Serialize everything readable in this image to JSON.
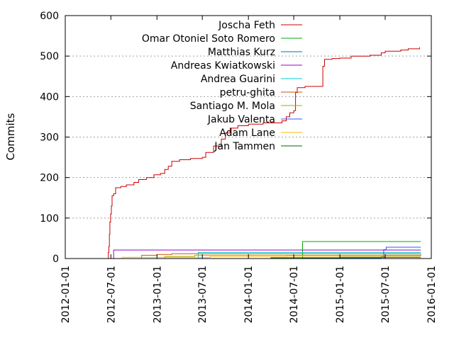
{
  "chart_data": {
    "type": "line",
    "ylabel": "Commits",
    "xlabel": "",
    "title": "",
    "ylim": [
      0,
      600
    ],
    "yticks": [
      0,
      100,
      200,
      300,
      400,
      500,
      600
    ],
    "xlim": [
      "2012-01-01",
      "2016-01-01"
    ],
    "xticks": [
      "2012-01-01",
      "2012-07-01",
      "2013-01-01",
      "2013-07-01",
      "2014-01-01",
      "2014-07-01",
      "2015-01-01",
      "2015-07-01",
      "2016-01-01"
    ],
    "grid": "horizontal-dashed",
    "legend_position": "top-right",
    "series": [
      {
        "name": "Joscha Feth",
        "color": "#cc0000",
        "points": [
          [
            "2012-06-20",
            0
          ],
          [
            "2012-06-21",
            15
          ],
          [
            "2012-06-23",
            30
          ],
          [
            "2012-06-25",
            60
          ],
          [
            "2012-06-27",
            90
          ],
          [
            "2012-06-30",
            110
          ],
          [
            "2012-07-03",
            130
          ],
          [
            "2012-07-06",
            155
          ],
          [
            "2012-07-12",
            160
          ],
          [
            "2012-07-20",
            175
          ],
          [
            "2012-08-10",
            178
          ],
          [
            "2012-09-01",
            182
          ],
          [
            "2012-10-01",
            188
          ],
          [
            "2012-10-20",
            195
          ],
          [
            "2012-11-20",
            200
          ],
          [
            "2012-12-20",
            207
          ],
          [
            "2013-01-15",
            210
          ],
          [
            "2013-02-01",
            220
          ],
          [
            "2013-02-15",
            228
          ],
          [
            "2013-03-01",
            240
          ],
          [
            "2013-04-01",
            244
          ],
          [
            "2013-05-15",
            247
          ],
          [
            "2013-07-01",
            250
          ],
          [
            "2013-07-15",
            262
          ],
          [
            "2013-08-15",
            278
          ],
          [
            "2013-09-15",
            295
          ],
          [
            "2013-10-01",
            310
          ],
          [
            "2013-10-20",
            322
          ],
          [
            "2013-11-20",
            328
          ],
          [
            "2014-01-01",
            332
          ],
          [
            "2014-03-01",
            335
          ],
          [
            "2014-05-15",
            340
          ],
          [
            "2014-06-01",
            350
          ],
          [
            "2014-06-15",
            360
          ],
          [
            "2014-07-01",
            365
          ],
          [
            "2014-07-08",
            410
          ],
          [
            "2014-07-15",
            422
          ],
          [
            "2014-08-15",
            425
          ],
          [
            "2014-10-15",
            425
          ],
          [
            "2014-10-25",
            475
          ],
          [
            "2014-11-01",
            492
          ],
          [
            "2014-12-01",
            494
          ],
          [
            "2015-01-01",
            495
          ],
          [
            "2015-02-15",
            500
          ],
          [
            "2015-05-01",
            502
          ],
          [
            "2015-06-15",
            508
          ],
          [
            "2015-07-01",
            512
          ],
          [
            "2015-09-01",
            515
          ],
          [
            "2015-10-01",
            518
          ],
          [
            "2015-11-15",
            522
          ]
        ]
      },
      {
        "name": "Omar Otoniel Soto Romero",
        "color": "#00aa00",
        "points": [
          [
            "2014-08-01",
            0
          ],
          [
            "2014-08-05",
            42
          ],
          [
            "2015-11-20",
            42
          ]
        ]
      },
      {
        "name": "Matthias Kurz",
        "color": "#0077aa",
        "points": [
          [
            "2013-06-01",
            0
          ],
          [
            "2014-08-01",
            1
          ],
          [
            "2015-06-15",
            4
          ],
          [
            "2015-07-01",
            8
          ],
          [
            "2015-11-20",
            10
          ]
        ]
      },
      {
        "name": "Andreas Kwiatkowski",
        "color": "#9900cc",
        "points": [
          [
            "2012-07-01",
            0
          ],
          [
            "2012-07-12",
            21
          ],
          [
            "2015-11-20",
            21
          ]
        ]
      },
      {
        "name": "Andrea Guarini",
        "color": "#00cccc",
        "points": [
          [
            "2013-06-01",
            0
          ],
          [
            "2013-06-15",
            15
          ],
          [
            "2015-11-20",
            15
          ]
        ]
      },
      {
        "name": "petru-ghita",
        "color": "#cc5500",
        "points": [
          [
            "2012-10-15",
            0
          ],
          [
            "2012-11-01",
            8
          ],
          [
            "2013-01-01",
            10
          ],
          [
            "2013-03-01",
            12
          ],
          [
            "2015-11-20",
            12
          ]
        ]
      },
      {
        "name": "Santiago M. Mola",
        "color": "#aaaa00",
        "points": [
          [
            "2012-10-15",
            0
          ],
          [
            "2013-02-01",
            5
          ],
          [
            "2013-06-01",
            8
          ],
          [
            "2015-11-20",
            8
          ]
        ]
      },
      {
        "name": "Jakub Valenta",
        "color": "#3355ff",
        "points": [
          [
            "2015-06-15",
            0
          ],
          [
            "2015-06-25",
            22
          ],
          [
            "2015-07-05",
            28
          ],
          [
            "2015-11-20",
            28
          ]
        ]
      },
      {
        "name": "Adam Lane",
        "color": "#ffbb00",
        "points": [
          [
            "2012-08-01",
            0
          ],
          [
            "2012-08-15",
            3
          ],
          [
            "2013-08-01",
            5
          ],
          [
            "2014-06-01",
            6
          ],
          [
            "2015-11-20",
            6
          ]
        ]
      },
      {
        "name": "Jan Tammen",
        "color": "#006600",
        "points": [
          [
            "2014-01-01",
            0
          ],
          [
            "2014-04-01",
            2
          ],
          [
            "2015-01-01",
            3
          ],
          [
            "2015-11-20",
            3
          ]
        ]
      }
    ]
  }
}
